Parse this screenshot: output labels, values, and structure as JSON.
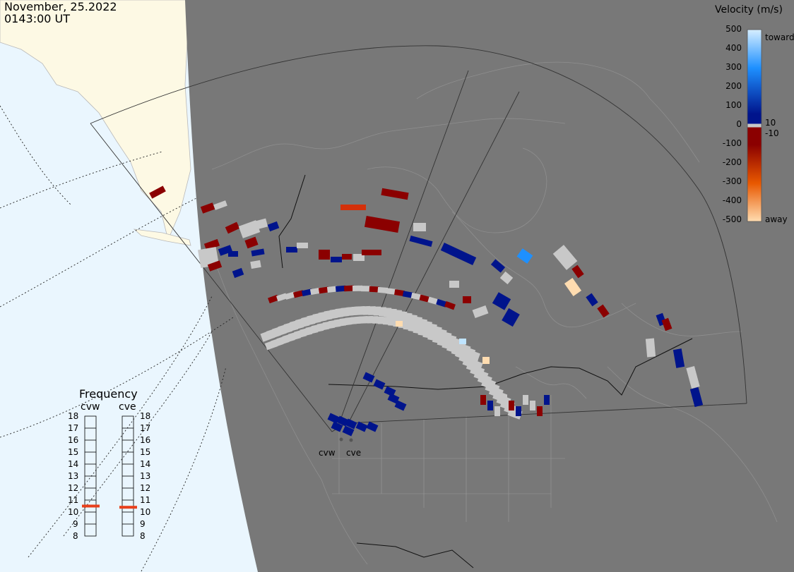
{
  "header": {
    "date": "November, 25.2022",
    "time": "0143:00 UT"
  },
  "colorbar": {
    "title": "Velocity (m/s)",
    "ticks": [
      "500",
      "400",
      "300",
      "200",
      "100",
      "0",
      "-100",
      "-200",
      "-300",
      "-400",
      "-500"
    ],
    "inner_labels": [
      "10",
      "-10"
    ],
    "toward_label": "toward",
    "away_label": "away",
    "colors": {
      "toward_max": "#d6eeff",
      "toward_mid": "#1e90ff",
      "toward_low": "#00148c",
      "zero": "#c8c8c8",
      "away_low": "#8b0000",
      "away_mid": "#e85800",
      "away_max": "#ffdcb0"
    }
  },
  "frequency": {
    "title": "Frequency",
    "radars": [
      "cvw",
      "cve"
    ],
    "levels": [
      "18",
      "17",
      "16",
      "15",
      "14",
      "13",
      "12",
      "11",
      "10",
      "9",
      "8"
    ],
    "cvw_mhz": 10.5,
    "cve_mhz": 10.4,
    "marker_color": "#e8401c"
  },
  "sites": [
    "cvw",
    "cve"
  ],
  "map_colors": {
    "ocean_day": "#eaf6fe",
    "land_day": "#fdf9e4",
    "night": "#787878",
    "ground_scatter": "#c8c8c8"
  }
}
